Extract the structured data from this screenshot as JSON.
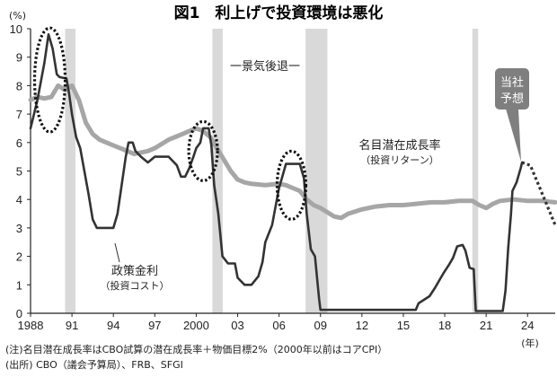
{
  "chart_data": {
    "type": "line",
    "title": "図1　利上げで投資環境は悪化",
    "unit_y": "(%)",
    "unit_x": "(年)",
    "ylim": [
      0,
      10
    ],
    "xlim": [
      1988,
      2026
    ],
    "y_ticks": [
      0,
      1,
      2,
      3,
      4,
      5,
      6,
      7,
      8,
      9,
      10
    ],
    "x_ticks": [
      {
        "value": 1988,
        "label": "1988"
      },
      {
        "value": 1991,
        "label": "91"
      },
      {
        "value": 1994,
        "label": "94"
      },
      {
        "value": 1997,
        "label": "97"
      },
      {
        "value": 2000,
        "label": "2000"
      },
      {
        "value": 2003,
        "label": "03"
      },
      {
        "value": 2006,
        "label": "06"
      },
      {
        "value": 2009,
        "label": "09"
      },
      {
        "value": 2012,
        "label": "12"
      },
      {
        "value": 2015,
        "label": "15"
      },
      {
        "value": 2018,
        "label": "18"
      },
      {
        "value": 2021,
        "label": "21"
      },
      {
        "value": 2024,
        "label": "24"
      }
    ],
    "recessions": [
      {
        "start": 1990.5,
        "end": 1991.25
      },
      {
        "start": 2001.17,
        "end": 2001.92
      },
      {
        "start": 2007.92,
        "end": 2009.5
      },
      {
        "start": 2020.0,
        "end": 2020.42
      }
    ],
    "recession_label": "一景気後退一",
    "series": [
      {
        "name": "名目潜在成長率",
        "sub": "（投資リターン）",
        "color": "#a6a6a6",
        "points": [
          [
            1988,
            7.5
          ],
          [
            1988.5,
            7.6
          ],
          [
            1989,
            7.55
          ],
          [
            1989.5,
            7.6
          ],
          [
            1990,
            8.0
          ],
          [
            1990.5,
            7.85
          ],
          [
            1991,
            8.0
          ],
          [
            1991.5,
            7.5
          ],
          [
            1992,
            6.7
          ],
          [
            1992.5,
            6.3
          ],
          [
            1993,
            6.1
          ],
          [
            1993.5,
            6.0
          ],
          [
            1994,
            5.9
          ],
          [
            1994.5,
            5.8
          ],
          [
            1995,
            5.7
          ],
          [
            1995.5,
            5.6
          ],
          [
            1996,
            5.65
          ],
          [
            1996.5,
            5.7
          ],
          [
            1997,
            5.8
          ],
          [
            1997.5,
            5.95
          ],
          [
            1998,
            6.1
          ],
          [
            1998.5,
            6.2
          ],
          [
            1999,
            6.3
          ],
          [
            1999.5,
            6.4
          ],
          [
            2000,
            6.5
          ],
          [
            2000.5,
            6.4
          ],
          [
            2001,
            6.2
          ],
          [
            2001.5,
            5.8
          ],
          [
            2002,
            5.4
          ],
          [
            2002.5,
            5.0
          ],
          [
            2003,
            4.7
          ],
          [
            2003.5,
            4.6
          ],
          [
            2004,
            4.55
          ],
          [
            2005,
            4.5
          ],
          [
            2006,
            4.55
          ],
          [
            2006.5,
            4.5
          ],
          [
            2007,
            4.4
          ],
          [
            2007.5,
            4.3
          ],
          [
            2008,
            4.0
          ],
          [
            2008.5,
            3.8
          ],
          [
            2009,
            3.7
          ],
          [
            2009.5,
            3.55
          ],
          [
            2010,
            3.4
          ],
          [
            2010.5,
            3.35
          ],
          [
            2011,
            3.5
          ],
          [
            2012,
            3.65
          ],
          [
            2013,
            3.75
          ],
          [
            2014,
            3.8
          ],
          [
            2015,
            3.8
          ],
          [
            2016,
            3.85
          ],
          [
            2017,
            3.9
          ],
          [
            2018,
            3.9
          ],
          [
            2019,
            3.95
          ],
          [
            2020,
            3.95
          ],
          [
            2020.5,
            3.8
          ],
          [
            2021,
            3.7
          ],
          [
            2021.5,
            3.85
          ],
          [
            2022,
            3.95
          ],
          [
            2023,
            4.0
          ],
          [
            2024,
            3.95
          ],
          [
            2025,
            3.95
          ],
          [
            2026,
            3.9
          ]
        ]
      },
      {
        "name": "政策金利",
        "sub": "（投資コスト）",
        "color": "#333333",
        "points": [
          [
            1988,
            6.5
          ],
          [
            1988.5,
            7.5
          ],
          [
            1989,
            8.8
          ],
          [
            1989.3,
            9.8
          ],
          [
            1989.6,
            9.3
          ],
          [
            1989.9,
            8.4
          ],
          [
            1990.1,
            8.3
          ],
          [
            1990.6,
            8.25
          ],
          [
            1990.8,
            7.7
          ],
          [
            1991,
            7.0
          ],
          [
            1991.3,
            6.2
          ],
          [
            1991.6,
            5.8
          ],
          [
            1991.9,
            5.0
          ],
          [
            1992.2,
            4.2
          ],
          [
            1992.5,
            3.3
          ],
          [
            1992.8,
            3.0
          ],
          [
            1993,
            3.0
          ],
          [
            1993.5,
            3.0
          ],
          [
            1994,
            3.0
          ],
          [
            1994.3,
            3.5
          ],
          [
            1994.6,
            4.5
          ],
          [
            1994.9,
            5.5
          ],
          [
            1995.1,
            6.0
          ],
          [
            1995.4,
            6.0
          ],
          [
            1995.6,
            5.7
          ],
          [
            1996,
            5.5
          ],
          [
            1996.5,
            5.3
          ],
          [
            1997,
            5.5
          ],
          [
            1998,
            5.5
          ],
          [
            1998.6,
            5.2
          ],
          [
            1998.9,
            4.8
          ],
          [
            1999.2,
            4.8
          ],
          [
            1999.5,
            5.1
          ],
          [
            1999.8,
            5.5
          ],
          [
            2000,
            5.8
          ],
          [
            2000.3,
            6.0
          ],
          [
            2000.5,
            6.5
          ],
          [
            2000.9,
            6.5
          ],
          [
            2001.1,
            5.9
          ],
          [
            2001.3,
            4.5
          ],
          [
            2001.6,
            3.5
          ],
          [
            2001.9,
            2.0
          ],
          [
            2002.3,
            1.75
          ],
          [
            2002.8,
            1.75
          ],
          [
            2003,
            1.25
          ],
          [
            2003.5,
            1.0
          ],
          [
            2004,
            1.0
          ],
          [
            2004.5,
            1.3
          ],
          [
            2004.8,
            1.8
          ],
          [
            2005,
            2.5
          ],
          [
            2005.5,
            3.1
          ],
          [
            2005.8,
            3.9
          ],
          [
            2006,
            4.4
          ],
          [
            2006.5,
            5.25
          ],
          [
            2007.5,
            5.25
          ],
          [
            2007.8,
            4.75
          ],
          [
            2008,
            3.5
          ],
          [
            2008.3,
            2.25
          ],
          [
            2008.6,
            2.0
          ],
          [
            2008.9,
            0.5
          ],
          [
            2009,
            0.12
          ],
          [
            2015.9,
            0.12
          ],
          [
            2016.1,
            0.35
          ],
          [
            2016.9,
            0.6
          ],
          [
            2017.3,
            0.9
          ],
          [
            2017.6,
            1.15
          ],
          [
            2017.9,
            1.4
          ],
          [
            2018.3,
            1.7
          ],
          [
            2018.6,
            1.95
          ],
          [
            2018.9,
            2.35
          ],
          [
            2019.3,
            2.4
          ],
          [
            2019.5,
            2.2
          ],
          [
            2019.8,
            1.6
          ],
          [
            2020.1,
            1.55
          ],
          [
            2020.25,
            0.08
          ],
          [
            2022.2,
            0.08
          ],
          [
            2022.4,
            0.8
          ],
          [
            2022.6,
            2.3
          ],
          [
            2022.8,
            3.5
          ],
          [
            2022.9,
            4.3
          ],
          [
            2023.2,
            4.6
          ],
          [
            2023.5,
            5.1
          ],
          [
            2023.6,
            5.3
          ]
        ]
      },
      {
        "name": "当社予想",
        "color": "#333333",
        "dashed": true,
        "points": [
          [
            2023.6,
            5.3
          ],
          [
            2024.2,
            5.2
          ],
          [
            2024.8,
            4.5
          ],
          [
            2025.4,
            3.8
          ],
          [
            2026,
            3.1
          ]
        ]
      }
    ],
    "callouts": {
      "forecast_label_1": "当社",
      "forecast_label_2": "予想"
    },
    "highlight_ellipses": [
      {
        "cx": 1989.4,
        "cy": 8.2
      },
      {
        "cx": 2000.5,
        "cy": 5.7
      },
      {
        "cx": 2006.9,
        "cy": 4.5
      }
    ]
  },
  "notes": {
    "line1": "(注)名目潜在成長率はCBO試算の潜在成長率＋物価目標2%（2000年以前はコアCPI）",
    "line2": "(出所) CBO（議会予算局）、FRB、SFGI"
  },
  "colors": {
    "recession_band": "#d9d9d9",
    "gray_line": "#a6a6a6",
    "dark_line": "#333333",
    "callout_box": "#7f7f7f"
  }
}
